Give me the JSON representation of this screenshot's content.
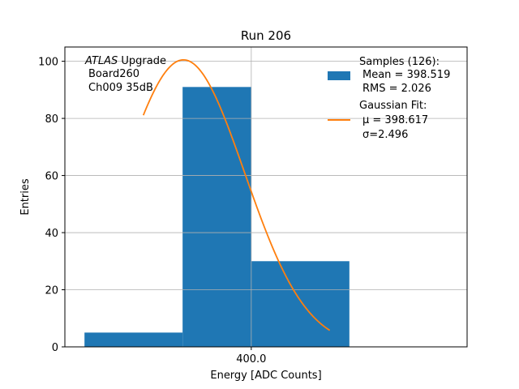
{
  "chart_data": {
    "type": "bar",
    "title": "Run 206",
    "xlabel": "Energy [ADC Counts]",
    "ylabel": "Entries",
    "xlim": [
      396.2,
      404.4
    ],
    "ylim": [
      0,
      105
    ],
    "x_ticks": [
      400.0
    ],
    "x_tick_labels": [
      "400.0"
    ],
    "y_ticks": [
      0,
      20,
      40,
      60,
      80,
      100
    ],
    "grid": true,
    "bins": [
      {
        "x0": 396.6,
        "x1": 398.6,
        "value": 5
      },
      {
        "x0": 398.6,
        "x1": 400.0,
        "value": 91
      },
      {
        "x0": 400.0,
        "x1": 402.0,
        "value": 30
      }
    ],
    "bar_color": "#1f77b4",
    "fit": {
      "name": "Gaussian Fit",
      "mu": 398.617,
      "sigma": 2.496,
      "amplitude": 100.5,
      "x_range": [
        397.8,
        401.6
      ],
      "color": "#ff7f0e"
    },
    "annotation": {
      "atlas": "ATLAS",
      "upgrade": " Upgrade",
      "line2": "Board260",
      "line3": "Ch009 35dB"
    },
    "legend": {
      "placement": "top-right",
      "samples_title": "Samples (126):",
      "samples_mean": "Mean = 398.519",
      "samples_rms": "RMS = 2.026",
      "fit_title": "Gaussian Fit:",
      "fit_mu": "μ = 398.617",
      "fit_sigma": "σ=2.496"
    }
  }
}
